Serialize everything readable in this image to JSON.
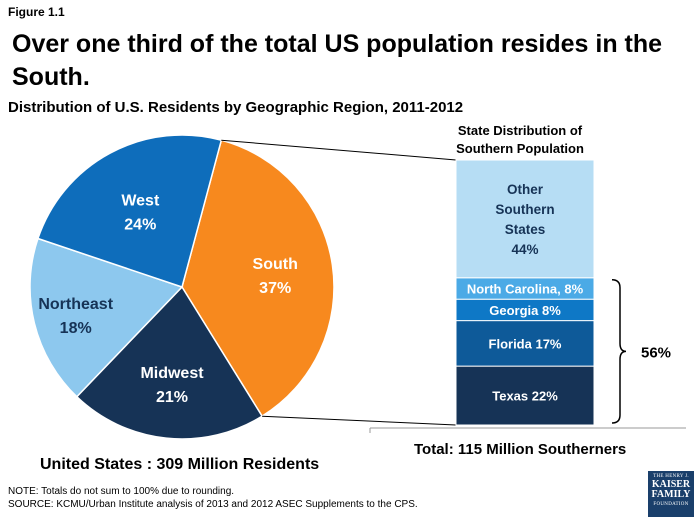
{
  "figure_label": "Figure 1.1",
  "headline": "Over one third of the total US population resides in the South.",
  "chart_data": [
    {
      "type": "pie",
      "title": "Distribution of U.S. Residents by Geographic Region,  2011-2012",
      "caption": "United States : 309 Million Residents",
      "slices": [
        {
          "label": "South",
          "value": 37,
          "display": "37%",
          "color": "#F7891E"
        },
        {
          "label": "Midwest",
          "value": 21,
          "display": "21%",
          "color": "#163356"
        },
        {
          "label": "Northeast",
          "value": 18,
          "display": "18%",
          "color": "#8DC8EE"
        },
        {
          "label": "West",
          "value": 24,
          "display": "24%",
          "color": "#0E6DBB"
        }
      ]
    },
    {
      "type": "bar",
      "stacked": true,
      "title_lines": [
        "State Distribution of",
        "Southern Population"
      ],
      "caption": "Total: 115 Million Southerners",
      "bracket_label": "56%",
      "segments": [
        {
          "label": "Texas 22%",
          "value": 22,
          "color": "#163356"
        },
        {
          "label": "Florida 17%",
          "value": 17,
          "color": "#0E5A99"
        },
        {
          "label": "Georgia 8%",
          "value": 8,
          "color": "#0E78C6"
        },
        {
          "label": "North Carolina, 8%",
          "value": 8,
          "color": "#4BAAE6"
        },
        {
          "label": "Other Southern States 44%",
          "value": 44,
          "color": "#B6DDF4",
          "label_lines": [
            "Other",
            "Southern",
            "States",
            "44%"
          ]
        }
      ]
    }
  ],
  "notes": {
    "note": "NOTE: Totals do not sum to 100% due to rounding.",
    "source": "SOURCE: KCMU/Urban Institute analysis of 2013 and 2012 ASEC Supplements to the CPS."
  },
  "logo": {
    "line1": "THE HENRY J.",
    "line2": "KAISER",
    "line3": "FAMILY",
    "line4": "FOUNDATION"
  }
}
